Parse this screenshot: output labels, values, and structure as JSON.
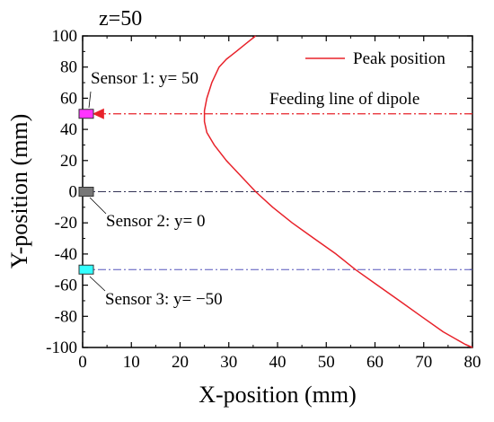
{
  "chart_data": {
    "type": "line",
    "title": "z=50",
    "xlabel": "X-position (mm)",
    "ylabel": "Y-position (mm)",
    "xlim": [
      0,
      80
    ],
    "ylim": [
      -100,
      100
    ],
    "xticks": [
      0,
      10,
      20,
      30,
      40,
      50,
      60,
      70,
      80
    ],
    "yticks": [
      -100,
      -80,
      -60,
      -40,
      -20,
      0,
      20,
      40,
      60,
      80,
      100
    ],
    "grid": false,
    "legend": {
      "position": "top-right",
      "entries": [
        "Peak position"
      ]
    },
    "series": [
      {
        "name": "Peak position",
        "color": "#e8222a",
        "x": [
          35.5,
          33.5,
          31.5,
          29.5,
          28,
          26.5,
          25.5,
          25,
          25,
          25.5,
          27,
          29.5,
          32.5,
          35.5,
          39,
          43,
          47.5,
          52,
          56,
          60.5,
          65,
          69.5,
          74,
          78.5,
          80
        ],
        "y": [
          100,
          95,
          90,
          85,
          80,
          70,
          60,
          52,
          45,
          38,
          30,
          20,
          10,
          0,
          -10,
          -20,
          -30,
          -40,
          -50,
          -60,
          -70,
          -80,
          -90,
          -98,
          -100
        ]
      }
    ],
    "reference_lines": [
      {
        "y": 50,
        "style": "dash-dot",
        "color": "#e8222a",
        "label": "Feeding line of dipole",
        "arrow": true
      },
      {
        "y": 0,
        "style": "dash-dot",
        "color": "#333355"
      },
      {
        "y": -50,
        "style": "dash-dot",
        "color": "#5555bb"
      }
    ],
    "sensors": [
      {
        "label": "Sensor 1: y= 50",
        "y": 50,
        "color": "#ff33ff"
      },
      {
        "label": "Sensor 2: y= 0",
        "y": 0,
        "color": "#777777"
      },
      {
        "label": "Sensor 3: y= −50",
        "y": -50,
        "color": "#33ffff"
      }
    ]
  }
}
